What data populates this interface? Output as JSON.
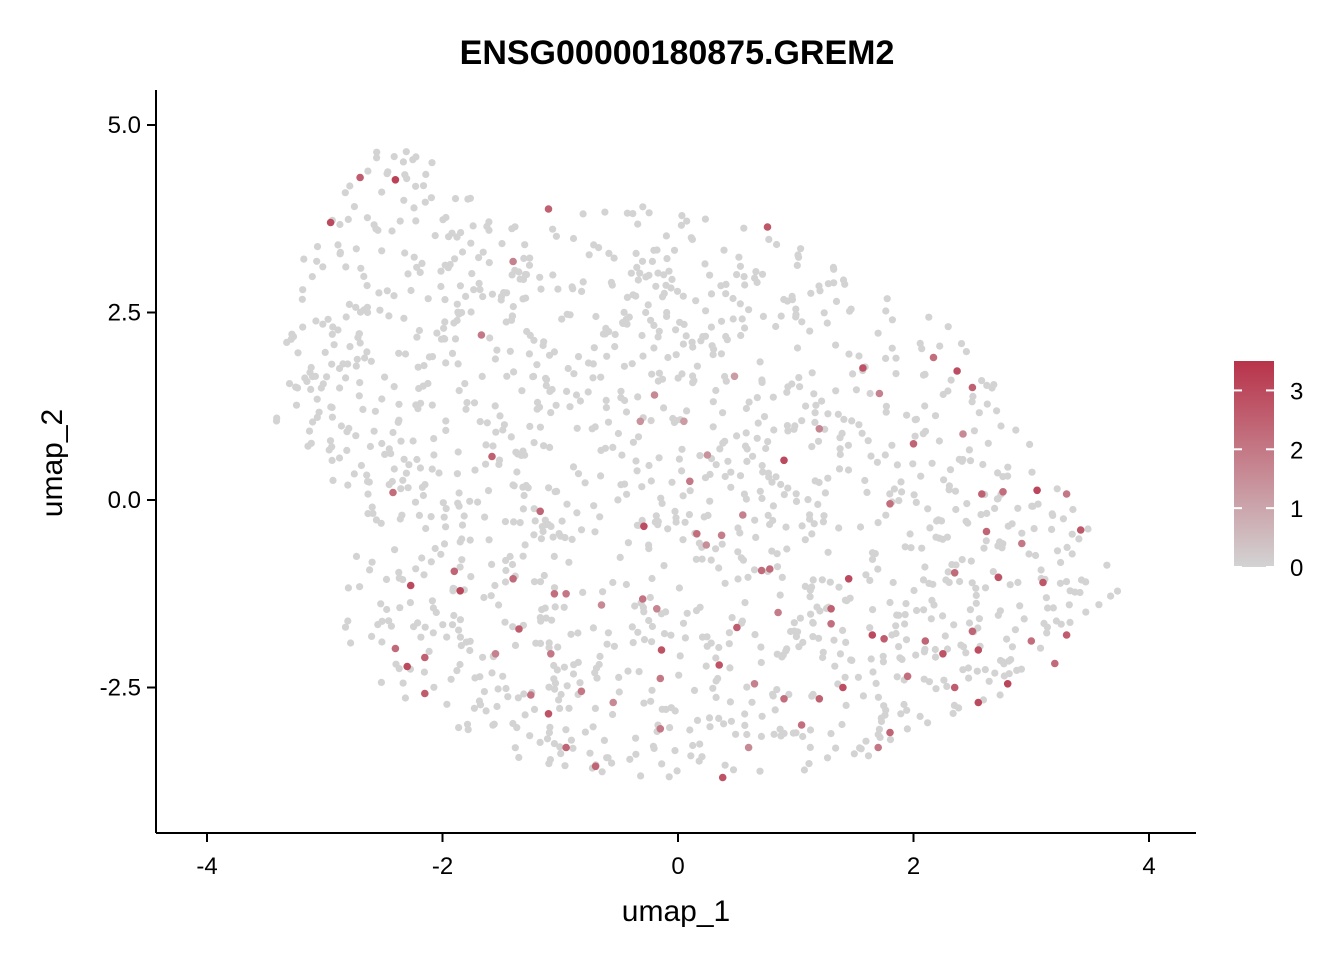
{
  "chart_data": {
    "type": "scatter",
    "title": "ENSG00000180875.GREM2",
    "xlabel": "umap_1",
    "ylabel": "umap_2",
    "xlim": [
      -4.4,
      4.4
    ],
    "ylim": [
      -4.45,
      5.45
    ],
    "x_ticks": [
      -4,
      -2,
      0,
      2,
      4
    ],
    "x_tick_labels": [
      "-4",
      "-2",
      "0",
      "2",
      "4"
    ],
    "y_ticks": [
      -2.5,
      0,
      2.5,
      5
    ],
    "y_tick_labels": [
      "-2.5",
      "0.0",
      "2.5",
      "5.0"
    ],
    "grid": false,
    "legend": {
      "position": "right",
      "type": "colorbar",
      "min": 0,
      "max": 3.5,
      "ticks": [
        0,
        1,
        2,
        3
      ],
      "tick_labels": [
        "0",
        "1",
        "2",
        "3"
      ],
      "low_color": "#d3d3d3",
      "high_color": "#b8334a"
    },
    "n_background_points": 1450,
    "background_value": 0,
    "points": [
      {
        "x": -2.95,
        "y": 3.7,
        "v": 3.0
      },
      {
        "x": -2.7,
        "y": 4.3,
        "v": 2.6
      },
      {
        "x": -2.4,
        "y": 4.27,
        "v": 3.2
      },
      {
        "x": -1.1,
        "y": 3.88,
        "v": 2.5
      },
      {
        "x": -1.4,
        "y": 3.18,
        "v": 1.8
      },
      {
        "x": -1.67,
        "y": 2.2,
        "v": 2.0
      },
      {
        "x": -1.58,
        "y": 0.58,
        "v": 2.5
      },
      {
        "x": -2.42,
        "y": 0.1,
        "v": 2.2
      },
      {
        "x": 0.76,
        "y": 3.64,
        "v": 2.7
      },
      {
        "x": 1.57,
        "y": 1.76,
        "v": 2.8
      },
      {
        "x": 1.71,
        "y": 1.42,
        "v": 1.8
      },
      {
        "x": 2.17,
        "y": 1.9,
        "v": 2.2
      },
      {
        "x": 2.37,
        "y": 1.72,
        "v": 2.9
      },
      {
        "x": 2.5,
        "y": 1.5,
        "v": 2.5
      },
      {
        "x": 2.42,
        "y": 0.88,
        "v": 1.6
      },
      {
        "x": 2.0,
        "y": 0.75,
        "v": 2.4
      },
      {
        "x": -0.2,
        "y": 1.4,
        "v": 1.6
      },
      {
        "x": -0.32,
        "y": 1.05,
        "v": 1.4
      },
      {
        "x": 0.05,
        "y": 1.05,
        "v": 1.2
      },
      {
        "x": 0.48,
        "y": 1.65,
        "v": 1.2
      },
      {
        "x": 0.9,
        "y": 0.53,
        "v": 3.0
      },
      {
        "x": 0.25,
        "y": 0.6,
        "v": 1.4
      },
      {
        "x": 0.1,
        "y": 0.25,
        "v": 2.0
      },
      {
        "x": 1.2,
        "y": 0.95,
        "v": 1.7
      },
      {
        "x": -1.17,
        "y": -0.15,
        "v": 2.4
      },
      {
        "x": -0.29,
        "y": -0.35,
        "v": 2.9
      },
      {
        "x": 0.16,
        "y": -0.45,
        "v": 2.2
      },
      {
        "x": 0.24,
        "y": -0.6,
        "v": 1.5
      },
      {
        "x": 0.37,
        "y": -0.47,
        "v": 1.9
      },
      {
        "x": 0.78,
        "y": -0.92,
        "v": 2.3
      },
      {
        "x": 0.71,
        "y": -0.94,
        "v": 2.3
      },
      {
        "x": 0.55,
        "y": -0.2,
        "v": 1.8
      },
      {
        "x": 1.45,
        "y": -1.05,
        "v": 3.0
      },
      {
        "x": 1.8,
        "y": -0.05,
        "v": 2.2
      },
      {
        "x": 2.35,
        "y": -0.97,
        "v": 2.3
      },
      {
        "x": 2.58,
        "y": 0.08,
        "v": 2.5
      },
      {
        "x": 2.62,
        "y": -0.42,
        "v": 2.4
      },
      {
        "x": 2.76,
        "y": 0.11,
        "v": 2.2
      },
      {
        "x": 2.92,
        "y": -0.58,
        "v": 2.0
      },
      {
        "x": 3.05,
        "y": 0.13,
        "v": 3.1
      },
      {
        "x": 3.3,
        "y": 0.08,
        "v": 2.0
      },
      {
        "x": 3.42,
        "y": -0.4,
        "v": 2.7
      },
      {
        "x": 3.1,
        "y": -1.1,
        "v": 2.7
      },
      {
        "x": 2.72,
        "y": -1.03,
        "v": 2.8
      },
      {
        "x": -2.27,
        "y": -1.14,
        "v": 3.0
      },
      {
        "x": -1.9,
        "y": -0.95,
        "v": 2.4
      },
      {
        "x": -1.85,
        "y": -1.21,
        "v": 3.1
      },
      {
        "x": -1.4,
        "y": -1.05,
        "v": 2.3
      },
      {
        "x": -1.05,
        "y": -1.25,
        "v": 2.2
      },
      {
        "x": -0.95,
        "y": -1.25,
        "v": 2.0
      },
      {
        "x": -0.65,
        "y": -1.4,
        "v": 1.6
      },
      {
        "x": -0.3,
        "y": -1.32,
        "v": 2.1
      },
      {
        "x": -0.18,
        "y": -1.45,
        "v": 1.7
      },
      {
        "x": -1.35,
        "y": -1.72,
        "v": 2.6
      },
      {
        "x": -2.4,
        "y": -1.98,
        "v": 2.3
      },
      {
        "x": -2.3,
        "y": -2.22,
        "v": 3.0
      },
      {
        "x": -2.15,
        "y": -2.1,
        "v": 2.5
      },
      {
        "x": -2.15,
        "y": -2.58,
        "v": 2.6
      },
      {
        "x": -1.55,
        "y": -2.05,
        "v": 1.8
      },
      {
        "x": -1.08,
        "y": -2.05,
        "v": 2.0
      },
      {
        "x": -0.82,
        "y": -2.55,
        "v": 2.0
      },
      {
        "x": -0.15,
        "y": -2.38,
        "v": 2.0
      },
      {
        "x": -0.14,
        "y": -2.0,
        "v": 2.8
      },
      {
        "x": 0.35,
        "y": -2.2,
        "v": 2.8
      },
      {
        "x": 0.5,
        "y": -1.7,
        "v": 2.6
      },
      {
        "x": 0.85,
        "y": -1.5,
        "v": 1.9
      },
      {
        "x": 1.3,
        "y": -1.65,
        "v": 2.2
      },
      {
        "x": 1.3,
        "y": -1.45,
        "v": 2.5
      },
      {
        "x": 1.65,
        "y": -1.8,
        "v": 3.0
      },
      {
        "x": 1.75,
        "y": -1.85,
        "v": 2.6
      },
      {
        "x": 1.95,
        "y": -2.35,
        "v": 2.2
      },
      {
        "x": 2.1,
        "y": -1.88,
        "v": 2.4
      },
      {
        "x": 2.25,
        "y": -2.05,
        "v": 2.8
      },
      {
        "x": 2.5,
        "y": -1.75,
        "v": 2.4
      },
      {
        "x": 2.55,
        "y": -2.0,
        "v": 2.9
      },
      {
        "x": 2.8,
        "y": -2.45,
        "v": 3.1
      },
      {
        "x": 2.55,
        "y": -2.7,
        "v": 3.0
      },
      {
        "x": 2.35,
        "y": -2.5,
        "v": 2.6
      },
      {
        "x": 3.0,
        "y": -1.88,
        "v": 2.2
      },
      {
        "x": 3.2,
        "y": -2.18,
        "v": 2.3
      },
      {
        "x": 3.3,
        "y": -1.8,
        "v": 2.6
      },
      {
        "x": 1.4,
        "y": -2.5,
        "v": 2.9
      },
      {
        "x": 1.2,
        "y": -2.65,
        "v": 2.5
      },
      {
        "x": 0.9,
        "y": -2.65,
        "v": 2.2
      },
      {
        "x": 1.05,
        "y": -3.0,
        "v": 2.2
      },
      {
        "x": 0.65,
        "y": -2.45,
        "v": 1.8
      },
      {
        "x": -1.1,
        "y": -2.85,
        "v": 2.8
      },
      {
        "x": -0.95,
        "y": -3.3,
        "v": 2.4
      },
      {
        "x": -0.7,
        "y": -3.55,
        "v": 2.4
      },
      {
        "x": 0.38,
        "y": -3.7,
        "v": 2.8
      },
      {
        "x": 1.8,
        "y": -3.1,
        "v": 2.4
      },
      {
        "x": 1.7,
        "y": -3.3,
        "v": 2.0
      },
      {
        "x": -1.25,
        "y": -2.6,
        "v": 2.1
      },
      {
        "x": -0.55,
        "y": -2.7,
        "v": 1.6
      },
      {
        "x": -0.15,
        "y": -3.05,
        "v": 2.0
      },
      {
        "x": 0.6,
        "y": -3.3,
        "v": 1.6
      }
    ]
  }
}
